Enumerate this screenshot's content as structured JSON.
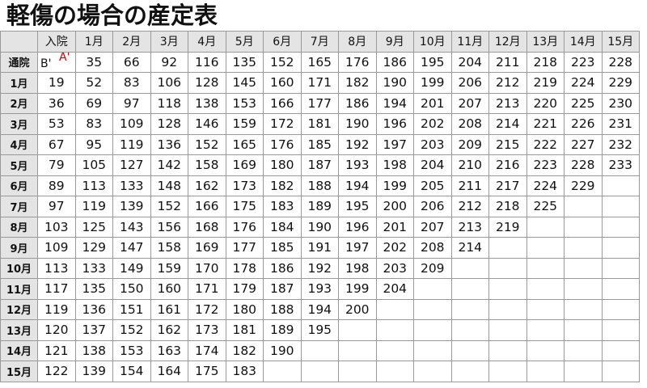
{
  "title": "軽傷の場合の産定表",
  "corner_label": "",
  "column_headers": [
    "入院",
    "1月",
    "2月",
    "3月",
    "4月",
    "5月",
    "6月",
    "7月",
    "8月",
    "9月",
    "10月",
    "11月",
    "12月",
    "13月",
    "14月",
    "15月"
  ],
  "ab_cell": {
    "b_label": "B'",
    "a_label": "A'",
    "a_color": "#cc0000"
  },
  "rows": [
    {
      "label": "通院",
      "values": [
        null,
        35,
        66,
        92,
        116,
        135,
        152,
        165,
        176,
        186,
        195,
        204,
        211,
        218,
        223,
        228
      ]
    },
    {
      "label": "1月",
      "values": [
        19,
        52,
        83,
        106,
        128,
        145,
        160,
        171,
        182,
        190,
        199,
        206,
        212,
        219,
        224,
        229
      ]
    },
    {
      "label": "2月",
      "values": [
        36,
        69,
        97,
        118,
        138,
        153,
        166,
        177,
        186,
        194,
        201,
        207,
        213,
        220,
        225,
        230
      ]
    },
    {
      "label": "3月",
      "values": [
        53,
        83,
        109,
        128,
        146,
        159,
        172,
        181,
        190,
        196,
        202,
        208,
        214,
        221,
        226,
        231
      ]
    },
    {
      "label": "4月",
      "values": [
        67,
        95,
        119,
        136,
        152,
        165,
        176,
        185,
        192,
        197,
        203,
        209,
        215,
        222,
        227,
        232
      ]
    },
    {
      "label": "5月",
      "values": [
        79,
        105,
        127,
        142,
        158,
        169,
        180,
        187,
        193,
        198,
        204,
        210,
        216,
        223,
        228,
        233
      ]
    },
    {
      "label": "6月",
      "values": [
        89,
        113,
        133,
        148,
        162,
        173,
        182,
        188,
        194,
        199,
        205,
        211,
        217,
        224,
        229,
        ""
      ]
    },
    {
      "label": "7月",
      "values": [
        97,
        119,
        139,
        152,
        166,
        175,
        183,
        189,
        195,
        200,
        206,
        212,
        218,
        225,
        "",
        ""
      ]
    },
    {
      "label": "8月",
      "values": [
        103,
        125,
        143,
        156,
        168,
        176,
        184,
        190,
        196,
        201,
        207,
        213,
        219,
        "",
        "",
        ""
      ]
    },
    {
      "label": "9月",
      "values": [
        109,
        129,
        147,
        158,
        169,
        177,
        185,
        191,
        197,
        202,
        208,
        214,
        "",
        "",
        "",
        ""
      ]
    },
    {
      "label": "10月",
      "values": [
        113,
        133,
        149,
        159,
        170,
        178,
        186,
        192,
        198,
        203,
        209,
        "",
        "",
        "",
        "",
        ""
      ]
    },
    {
      "label": "11月",
      "values": [
        117,
        135,
        150,
        160,
        171,
        179,
        187,
        193,
        199,
        204,
        "",
        "",
        "",
        "",
        "",
        ""
      ]
    },
    {
      "label": "12月",
      "values": [
        119,
        136,
        151,
        161,
        172,
        180,
        188,
        194,
        200,
        "",
        "",
        "",
        "",
        "",
        "",
        ""
      ]
    },
    {
      "label": "13月",
      "values": [
        120,
        137,
        152,
        162,
        173,
        181,
        189,
        195,
        "",
        "",
        "",
        "",
        "",
        "",
        "",
        ""
      ]
    },
    {
      "label": "14月",
      "values": [
        121,
        138,
        153,
        163,
        174,
        182,
        190,
        "",
        "",
        "",
        "",
        "",
        "",
        "",
        "",
        ""
      ]
    },
    {
      "label": "15月",
      "values": [
        122,
        139,
        154,
        164,
        175,
        183,
        "",
        "",
        "",
        "",
        "",
        "",
        "",
        "",
        "",
        ""
      ]
    }
  ],
  "colors": {
    "header_bg": "#e4e4e4",
    "grid": "#999999"
  }
}
